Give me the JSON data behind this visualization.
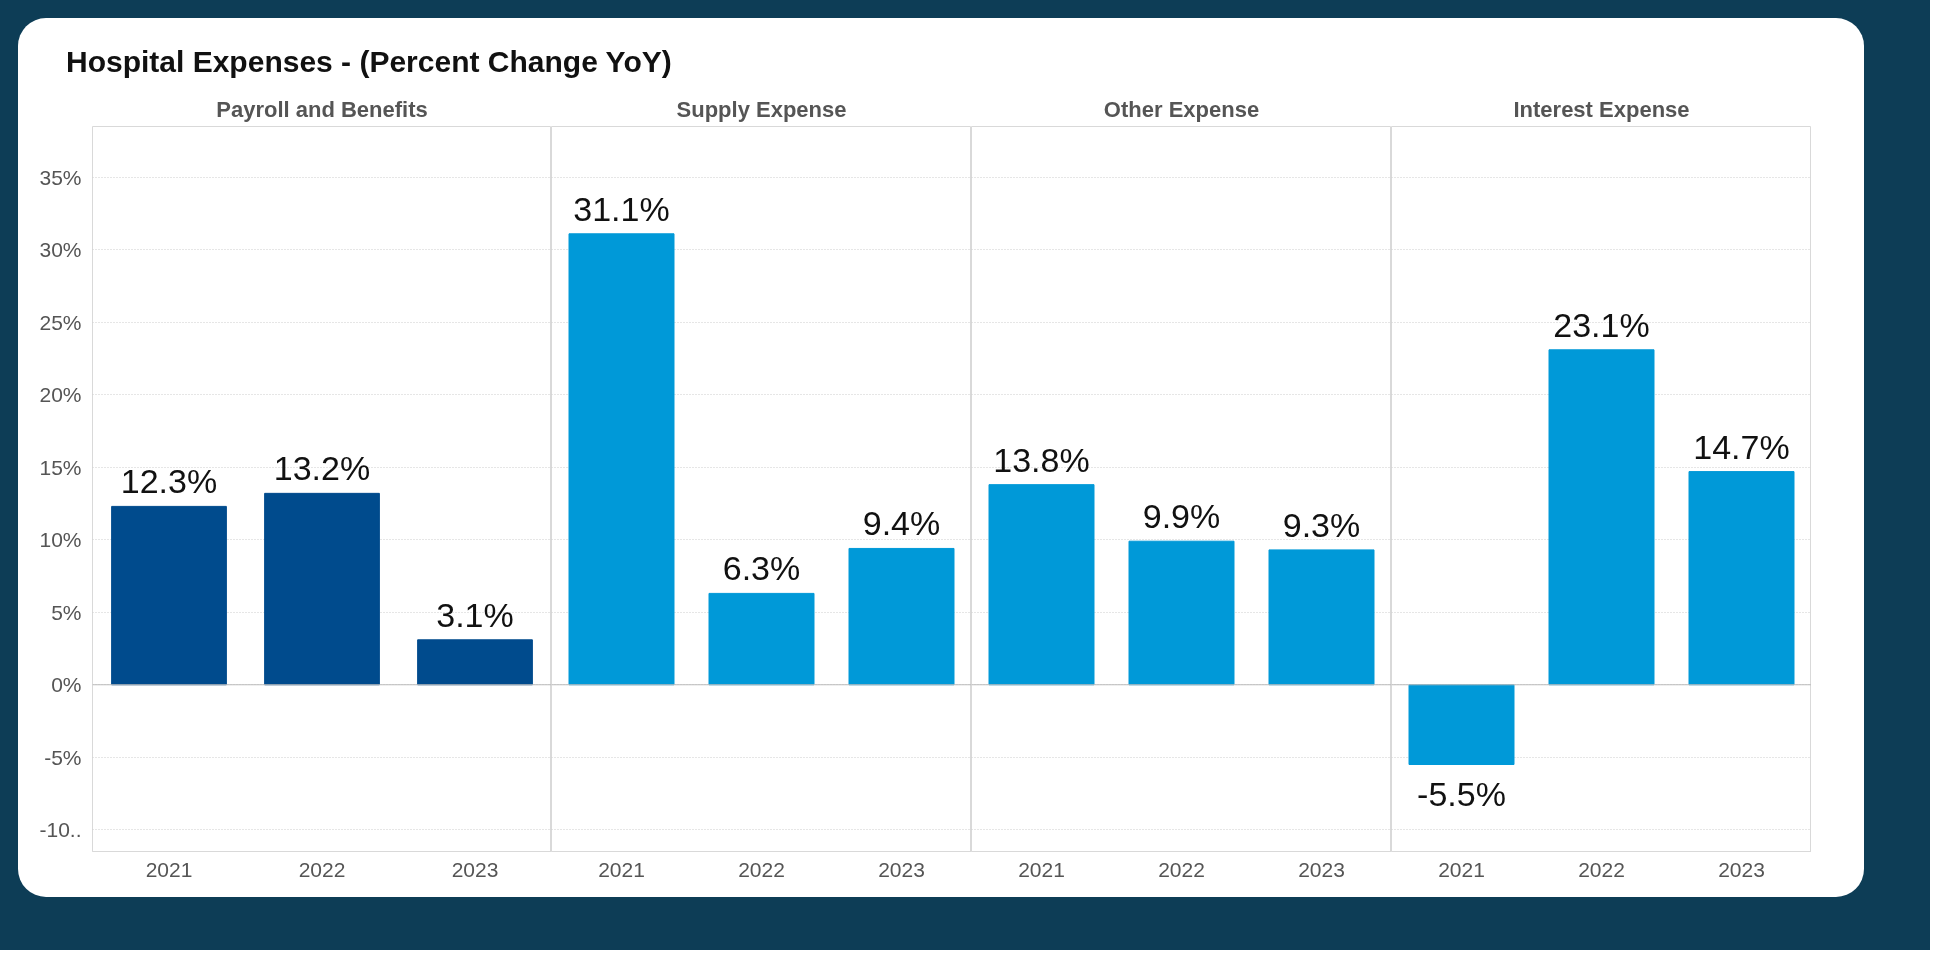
{
  "chart_data": [
    {
      "type": "bar",
      "title": "Hospital Expenses - (Percent Change YoY)",
      "subtitle": "Payroll and Benefits",
      "categories": [
        "2021",
        "2022",
        "2023"
      ],
      "values": [
        12.3,
        13.2,
        3.1
      ],
      "value_labels": [
        "12.3%",
        "13.2%",
        "3.1%"
      ],
      "color": "#004b8d",
      "ylim": [
        -11.5,
        38.5
      ],
      "yticks": [
        {
          "value": -10,
          "label": "-10.."
        },
        {
          "value": -5,
          "label": "-5%"
        },
        {
          "value": 0,
          "label": "0%"
        },
        {
          "value": 5,
          "label": "5%"
        },
        {
          "value": 10,
          "label": "10%"
        },
        {
          "value": 15,
          "label": "15%"
        },
        {
          "value": 20,
          "label": "20%"
        },
        {
          "value": 25,
          "label": "25%"
        },
        {
          "value": 30,
          "label": "30%"
        },
        {
          "value": 35,
          "label": "35%"
        }
      ],
      "grid": "y"
    },
    {
      "type": "bar",
      "subtitle": "Supply Expense",
      "categories": [
        "2021",
        "2022",
        "2023"
      ],
      "values": [
        31.1,
        6.3,
        9.4
      ],
      "value_labels": [
        "31.1%",
        "6.3%",
        "9.4%"
      ],
      "color": "#0099d8",
      "ylim": [
        -11.5,
        38.5
      ],
      "grid": "y",
      "tick_labels": "x"
    },
    {
      "type": "bar",
      "subtitle": "Other Expense",
      "categories": [
        "2021",
        "2022",
        "2023"
      ],
      "values": [
        13.8,
        9.9,
        9.3
      ],
      "value_labels": [
        "13.8%",
        "9.9%",
        "9.3%"
      ],
      "color": "#0099d8",
      "ylim": [
        -11.5,
        38.5
      ],
      "grid": "y",
      "tick_labels": "x"
    },
    {
      "type": "bar",
      "subtitle": "Interest Expense",
      "categories": [
        "2021",
        "2022",
        "2023"
      ],
      "values": [
        -5.5,
        23.1,
        14.7
      ],
      "value_labels": [
        "-5.5%",
        "23.1%",
        "14.7%"
      ],
      "color": "#0099d8",
      "ylim": [
        -11.5,
        38.5
      ],
      "grid": "y",
      "tick_labels": "x"
    }
  ]
}
